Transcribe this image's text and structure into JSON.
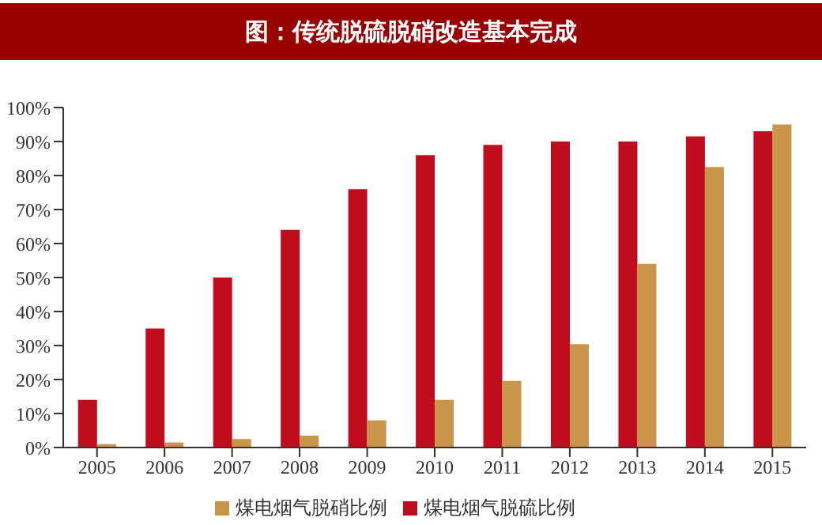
{
  "chart_data": {
    "type": "bar",
    "title": "图：传统脱硫脱硝改造基本完成",
    "categories": [
      "2005",
      "2006",
      "2007",
      "2008",
      "2009",
      "2010",
      "2011",
      "2012",
      "2013",
      "2014",
      "2015"
    ],
    "series": [
      {
        "name": "煤电烟气脱硫比例",
        "color": "#c00d1e",
        "values": [
          14,
          35,
          50,
          64,
          76,
          86,
          89,
          90,
          90,
          91.5,
          93
        ]
      },
      {
        "name": "煤电烟气脱硝比例",
        "color": "#c8954a",
        "values": [
          1,
          1.5,
          2.5,
          3.5,
          8,
          14,
          19.6,
          30.4,
          54,
          82.5,
          95
        ]
      }
    ],
    "ylim": [
      0,
      100
    ],
    "yticks": [
      {
        "value": 0,
        "label": "0%"
      },
      {
        "value": 10,
        "label": "10%"
      },
      {
        "value": 20,
        "label": "20%"
      },
      {
        "value": 30,
        "label": "30%"
      },
      {
        "value": 40,
        "label": "40%"
      },
      {
        "value": 50,
        "label": "50%"
      },
      {
        "value": 60,
        "label": "60%"
      },
      {
        "value": 70,
        "label": "70%"
      },
      {
        "value": 80,
        "label": "80%"
      },
      {
        "value": 90,
        "label": "90%"
      },
      {
        "value": 100,
        "label": "100%"
      }
    ],
    "grid": false,
    "legend": "bottom"
  }
}
